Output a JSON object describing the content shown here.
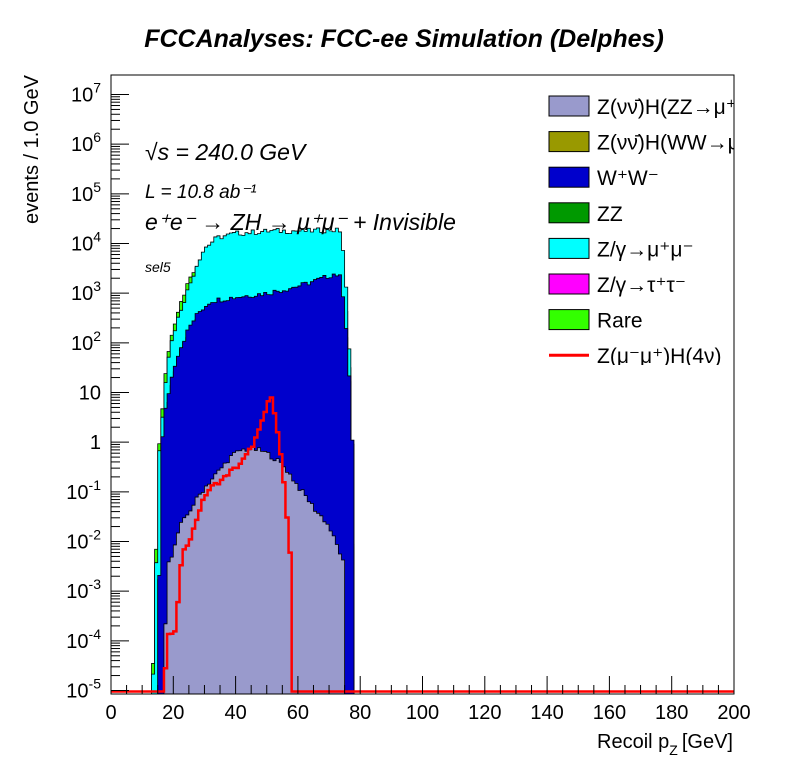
{
  "chart_data": {
    "type": "area",
    "stacked": true,
    "title": "FCCAnalyses: FCC-ee Simulation (Delphes)",
    "xlabel": "Recoil p",
    "xlabel_sub": "Z",
    "xlabel_unit": "[GeV]",
    "ylabel": "events / 1.0 GeV",
    "xlim": [
      0,
      200
    ],
    "ylim_log10": [
      -5,
      7
    ],
    "y_scale": "log",
    "x_ticks": [
      "0",
      "20",
      "40",
      "60",
      "80",
      "100",
      "120",
      "140",
      "160",
      "180",
      "200"
    ],
    "y_ticks": [
      {
        "base": "10",
        "exp": "-5"
      },
      {
        "base": "10",
        "exp": "-4"
      },
      {
        "base": "10",
        "exp": "-3"
      },
      {
        "base": "10",
        "exp": "-2"
      },
      {
        "base": "10",
        "exp": "-1"
      },
      {
        "base": "1",
        "exp": ""
      },
      {
        "base": "10",
        "exp": ""
      },
      {
        "base": "10",
        "exp": "2"
      },
      {
        "base": "10",
        "exp": "3"
      },
      {
        "base": "10",
        "exp": "4"
      },
      {
        "base": "10",
        "exp": "5"
      },
      {
        "base": "10",
        "exp": "6"
      },
      {
        "base": "10",
        "exp": "7"
      }
    ],
    "annotations": {
      "sqrt_s": "√s = 240.0 GeV",
      "lumi": "L = 10.8 ab⁻¹",
      "process": "e⁺e⁻ → ZH → μ⁺μ⁻ + Invisible",
      "selection": "sel5"
    },
    "legend_position": "top-right",
    "stack_totals": [
      {
        "name": "Z(νν̄)H(ZZ→μ⁺μ⁻νν̄)",
        "color": "#999acc",
        "points": [
          [
            17,
            1e-05
          ],
          [
            18,
            0.004
          ],
          [
            20,
            0.006
          ],
          [
            22,
            0.02
          ],
          [
            24,
            0.03
          ],
          [
            26,
            0.05
          ],
          [
            28,
            0.08
          ],
          [
            30,
            0.12
          ],
          [
            33,
            0.2
          ],
          [
            36,
            0.33
          ],
          [
            38,
            0.48
          ],
          [
            40,
            0.6
          ],
          [
            42,
            0.7
          ],
          [
            44,
            0.72
          ],
          [
            46,
            0.72
          ],
          [
            48,
            0.68
          ],
          [
            50,
            0.6
          ],
          [
            52,
            0.5
          ],
          [
            54,
            0.4
          ],
          [
            56,
            0.3
          ],
          [
            58,
            0.2
          ],
          [
            60,
            0.13
          ],
          [
            62,
            0.09
          ],
          [
            64,
            0.06
          ],
          [
            66,
            0.04
          ],
          [
            68,
            0.03
          ],
          [
            70,
            0.02
          ],
          [
            72,
            0.01
          ],
          [
            74,
            0.005
          ],
          [
            75,
            0.003
          ],
          [
            75.5,
            1e-05
          ]
        ]
      },
      {
        "name": "Z(νν̄)H(WW→μ⁺νμ⁻ν̄)",
        "color": "#999900",
        "points": [
          [
            18,
            1e-05
          ],
          [
            19,
            0.0008
          ],
          [
            20,
            0.0008
          ],
          [
            22,
            0.001
          ],
          [
            24,
            0.002
          ],
          [
            26,
            0.003
          ],
          [
            28,
            0.004
          ],
          [
            30,
            0.006
          ],
          [
            32,
            0.01
          ],
          [
            34,
            0.012
          ],
          [
            36,
            0.015
          ],
          [
            38,
            0.018
          ],
          [
            40,
            0.02
          ],
          [
            42,
            0.022
          ],
          [
            44,
            0.02
          ],
          [
            46,
            0.022
          ],
          [
            48,
            0.02
          ],
          [
            50,
            0.022
          ],
          [
            52,
            0.02
          ],
          [
            54,
            0.018
          ],
          [
            56,
            0.015
          ],
          [
            58,
            0.01
          ],
          [
            60,
            0.008
          ],
          [
            62,
            0.006
          ],
          [
            64,
            0.004
          ],
          [
            66,
            0.003
          ],
          [
            68,
            0.002
          ],
          [
            70,
            0.001
          ],
          [
            72,
            0.001
          ],
          [
            73,
            1e-05
          ]
        ]
      },
      {
        "name": "W⁺W⁻",
        "color": "#0000cc",
        "points": [
          [
            15,
            1e-05
          ],
          [
            16,
            0.5
          ],
          [
            17,
            3
          ],
          [
            19,
            15
          ],
          [
            21,
            50
          ],
          [
            23,
            100
          ],
          [
            25,
            200
          ],
          [
            28,
            400
          ],
          [
            32,
            700
          ],
          [
            38,
            800
          ],
          [
            44,
            900
          ],
          [
            50,
            1000
          ],
          [
            56,
            1200
          ],
          [
            62,
            1500
          ],
          [
            68,
            2000
          ],
          [
            72,
            2500
          ],
          [
            74,
            2000
          ],
          [
            76,
            100
          ],
          [
            77.5,
            1
          ],
          [
            78,
            1e-05
          ]
        ]
      },
      {
        "name": "ZZ",
        "color": "#009900",
        "points": [
          [
            15,
            1e-05
          ],
          [
            16,
            0.3
          ],
          [
            17,
            2
          ],
          [
            19,
            10
          ],
          [
            21,
            40
          ],
          [
            23,
            80
          ],
          [
            25,
            150
          ],
          [
            28,
            300
          ],
          [
            32,
            500
          ],
          [
            38,
            500
          ],
          [
            44,
            500
          ],
          [
            50,
            500
          ],
          [
            56,
            550
          ],
          [
            62,
            700
          ],
          [
            68,
            900
          ],
          [
            72,
            1000
          ],
          [
            74,
            800
          ],
          [
            76,
            60
          ],
          [
            77.5,
            1
          ],
          [
            78,
            1e-05
          ]
        ]
      },
      {
        "name": "Z/γ→μ⁺μ⁻",
        "color": "#00ffff",
        "points": [
          [
            13,
            1e-05
          ],
          [
            14,
            5e-05
          ],
          [
            15,
            0.3
          ],
          [
            16,
            1.5
          ],
          [
            17,
            8
          ],
          [
            18,
            40
          ],
          [
            20,
            150
          ],
          [
            22,
            400
          ],
          [
            24,
            900
          ],
          [
            26,
            2000
          ],
          [
            28,
            4500
          ],
          [
            30,
            8000
          ],
          [
            34,
            13000
          ],
          [
            40,
            16000
          ],
          [
            46,
            17000
          ],
          [
            52,
            18000
          ],
          [
            58,
            18000
          ],
          [
            64,
            18000
          ],
          [
            70,
            19000
          ],
          [
            74,
            18000
          ],
          [
            76,
            500
          ],
          [
            77,
            10
          ],
          [
            78,
            1e-05
          ]
        ]
      },
      {
        "name": "Z/γ→τ⁺τ⁻",
        "color": "#ff00ff",
        "points": [
          [
            17,
            1e-05
          ],
          [
            18,
            0.001
          ],
          [
            19,
            0.01
          ],
          [
            20,
            0.1
          ],
          [
            21,
            0.5
          ],
          [
            22,
            2
          ],
          [
            24,
            10
          ],
          [
            26,
            40
          ],
          [
            28,
            100
          ],
          [
            30,
            180
          ],
          [
            34,
            300
          ],
          [
            40,
            450
          ],
          [
            46,
            430
          ],
          [
            52,
            380
          ],
          [
            58,
            300
          ],
          [
            62,
            250
          ],
          [
            66,
            180
          ],
          [
            70,
            100
          ],
          [
            72,
            50
          ],
          [
            74,
            20
          ],
          [
            76,
            1
          ],
          [
            77,
            0.01
          ],
          [
            77.5,
            1e-05
          ]
        ]
      },
      {
        "name": "Rare",
        "color": "#33ff00",
        "points": [
          [
            13,
            1e-05
          ],
          [
            14,
            0.0001
          ],
          [
            15,
            0.5
          ],
          [
            16,
            2
          ],
          [
            17,
            10
          ],
          [
            18,
            50
          ],
          [
            20,
            200
          ],
          [
            22,
            600
          ],
          [
            24,
            1200
          ],
          [
            26,
            2500
          ],
          [
            30,
            4000
          ],
          [
            36,
            4500
          ],
          [
            42,
            5000
          ],
          [
            48,
            5000
          ],
          [
            54,
            5000
          ],
          [
            60,
            5500
          ],
          [
            66,
            6000
          ],
          [
            72,
            6500
          ],
          [
            74,
            6000
          ],
          [
            76,
            200
          ],
          [
            77,
            5
          ],
          [
            78,
            1e-05
          ]
        ]
      }
    ],
    "signal": {
      "name": "Z(μ⁻μ⁺)H(4ν)",
      "color": "#ff0000",
      "points": [
        [
          17,
          1e-05
        ],
        [
          18,
          8e-05
        ],
        [
          19,
          0.0002
        ],
        [
          20,
          0.0001
        ],
        [
          21,
          0.0002
        ],
        [
          22,
          0.002
        ],
        [
          23,
          0.005
        ],
        [
          24,
          0.008
        ],
        [
          25,
          0.01
        ],
        [
          26,
          0.015
        ],
        [
          27,
          0.02
        ],
        [
          28,
          0.04
        ],
        [
          29,
          0.05
        ],
        [
          30,
          0.08
        ],
        [
          31,
          0.1
        ],
        [
          32,
          0.12
        ],
        [
          34,
          0.15
        ],
        [
          36,
          0.18
        ],
        [
          38,
          0.25
        ],
        [
          40,
          0.3
        ],
        [
          42,
          0.4
        ],
        [
          44,
          0.6
        ],
        [
          46,
          1
        ],
        [
          48,
          2
        ],
        [
          50,
          5
        ],
        [
          51,
          9
        ],
        [
          52,
          6
        ],
        [
          53,
          3
        ],
        [
          54,
          1
        ],
        [
          55,
          0.3
        ],
        [
          56,
          0.08
        ],
        [
          57,
          0.01
        ],
        [
          58,
          0.003
        ],
        [
          58.5,
          1e-05
        ]
      ]
    }
  },
  "legend": [
    {
      "label": "Z(νν̄)H(ZZ→μ⁺μ⁻νν̄)",
      "color": "#999acc",
      "kind": "box"
    },
    {
      "label": "Z(νν̄)H(WW→μ⁺νμ⁻ν̄)",
      "color": "#999900",
      "kind": "box"
    },
    {
      "label": "W⁺W⁻",
      "color": "#0000cc",
      "kind": "box"
    },
    {
      "label": "ZZ",
      "color": "#009900",
      "kind": "box"
    },
    {
      "label": "Z/γ→μ⁺μ⁻",
      "color": "#00ffff",
      "kind": "box"
    },
    {
      "label": "Z/γ→τ⁺τ⁻",
      "color": "#ff00ff",
      "kind": "box"
    },
    {
      "label": "Rare",
      "color": "#33ff00",
      "kind": "box"
    },
    {
      "label": "Z(μ⁻μ⁺)H(4ν)",
      "color": "#ff0000",
      "kind": "line"
    }
  ]
}
